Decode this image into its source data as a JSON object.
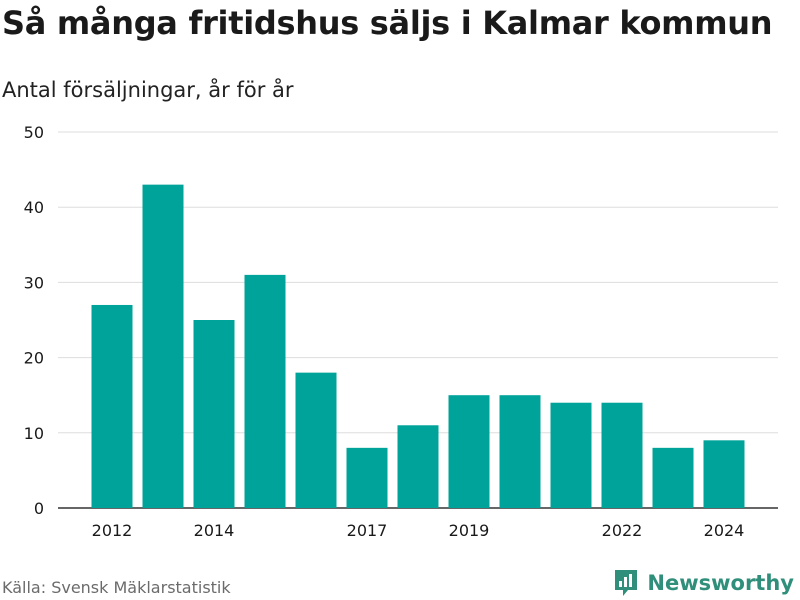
{
  "title": "Så många fritidshus säljs i Kalmar kommun",
  "subtitle": "Antal försäljningar, år för år",
  "source": "Källa: Svensk Mäklarstatistik",
  "brand": "Newsworthy",
  "colors": {
    "bar": "#00a39a",
    "grid": "#dddddd",
    "axis": "#333333",
    "text": "#1a1a1a",
    "brand": "#2f8f7a"
  },
  "chart_data": {
    "type": "bar",
    "x": [
      2012,
      2013,
      2014,
      2015,
      2016,
      2017,
      2018,
      2019,
      2020,
      2021,
      2022,
      2023,
      2024
    ],
    "values": [
      27,
      43,
      25,
      31,
      18,
      8,
      11,
      15,
      15,
      14,
      14,
      8,
      9
    ],
    "x_tick_labels": [
      "2012",
      "2014",
      "2017",
      "2019",
      "2022",
      "2024"
    ],
    "y_ticks": [
      0,
      10,
      20,
      30,
      40,
      50
    ],
    "ylim": [
      0,
      50
    ],
    "grid": true,
    "title": "Så många fritidshus säljs i Kalmar kommun",
    "subtitle": "Antal försäljningar, år för år"
  }
}
